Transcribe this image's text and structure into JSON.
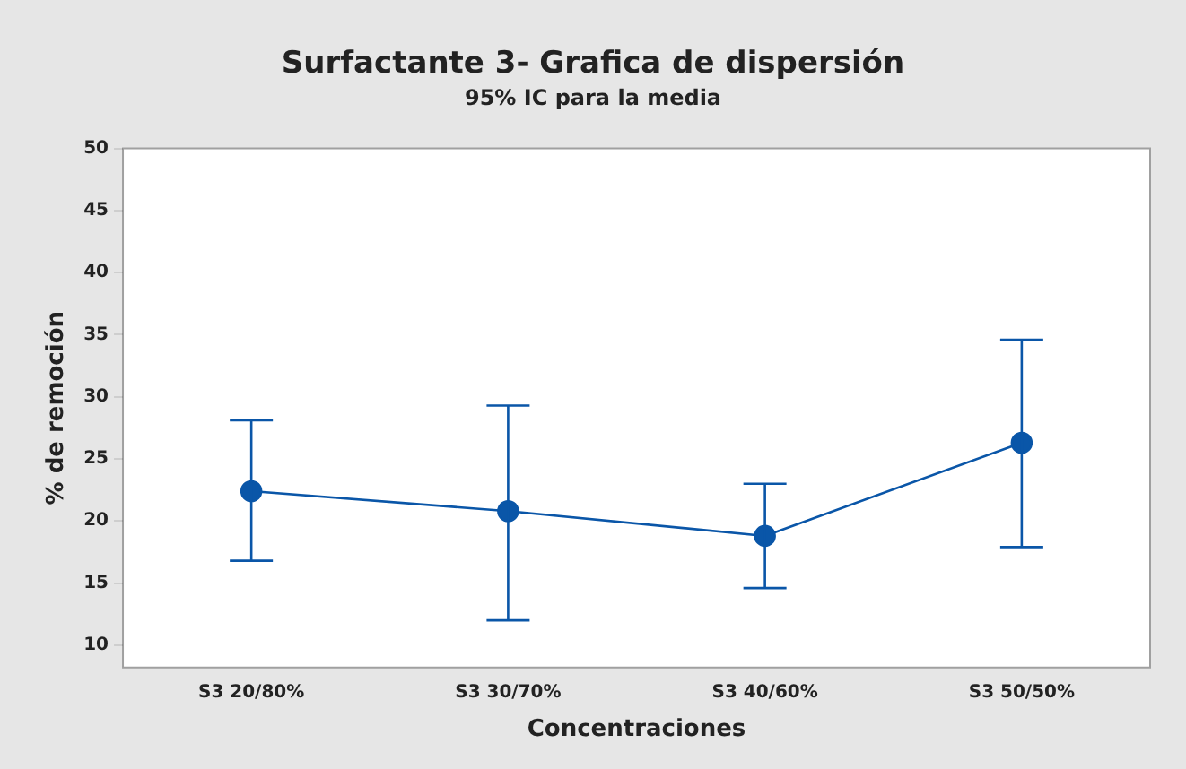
{
  "chart_data": {
    "type": "line",
    "title": "Surfactante 3- Grafica de dispersión",
    "subtitle": "95% IC para la media",
    "xlabel": "Concentraciones",
    "ylabel": "% de remoción",
    "categories": [
      "S3 20/80%",
      "S3 30/70%",
      "S3 40/60%",
      "S3 50/50%"
    ],
    "series": [
      {
        "color": "#0a56a8",
        "values": [
          22.4,
          20.8,
          18.8,
          26.3
        ],
        "errors": [
          [
            16.8,
            28.1
          ],
          [
            12.0,
            29.3
          ],
          [
            14.6,
            23.0
          ],
          [
            17.9,
            34.6
          ]
        ]
      }
    ],
    "ylim": [
      8.2,
      50
    ],
    "yticks": [
      10,
      15,
      20,
      25,
      30,
      35,
      40,
      45,
      50
    ],
    "grid": false,
    "legend": false,
    "marker": "circle",
    "line_style": "solid"
  }
}
